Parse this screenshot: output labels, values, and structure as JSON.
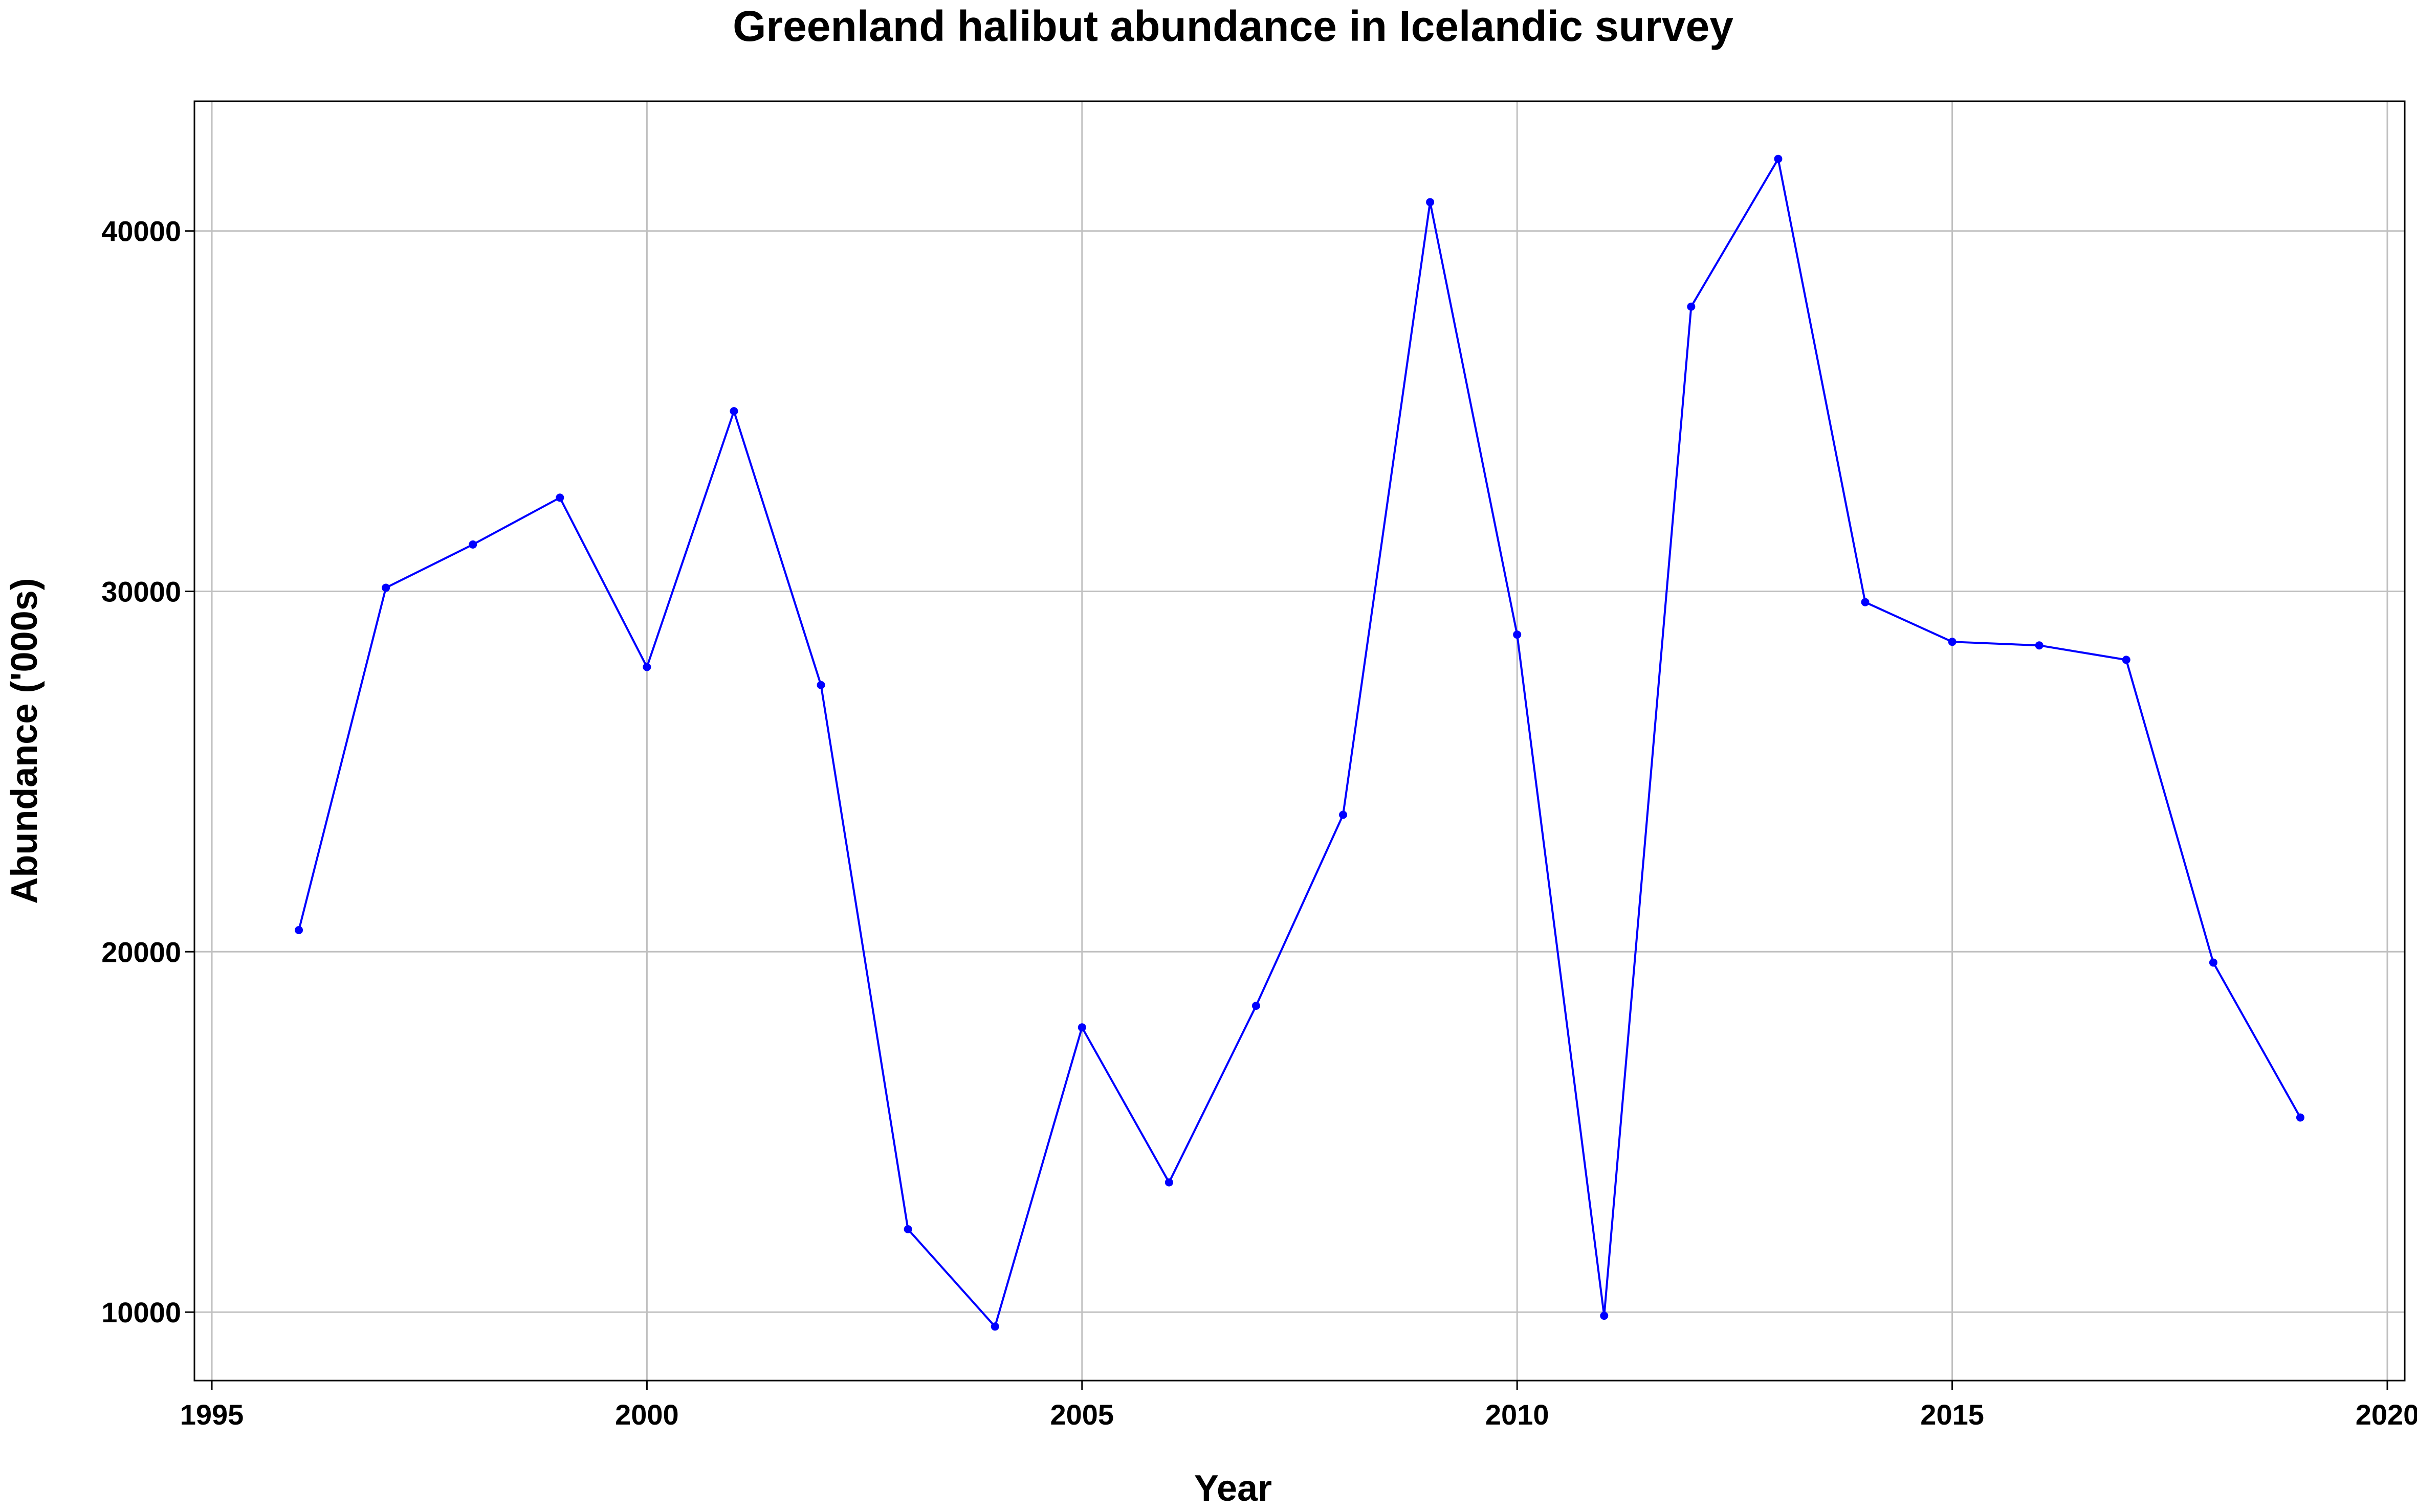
{
  "chart_data": {
    "type": "line",
    "title": "Greenland halibut abundance in Icelandic survey",
    "xlabel": "Year",
    "ylabel": "Abundance ('000s)",
    "xlim": [
      1994.8,
      2020.2
    ],
    "ylim": [
      8100,
      43600
    ],
    "x_ticks": [
      1995,
      2000,
      2005,
      2010,
      2015,
      2020
    ],
    "x_tick_labels": [
      "1995",
      "2000",
      "2005",
      "2010",
      "2015",
      "2020"
    ],
    "y_ticks": [
      10000,
      20000,
      30000,
      40000
    ],
    "y_tick_labels": [
      "10000",
      "20000",
      "30000",
      "40000"
    ],
    "grid": true,
    "legend": "none",
    "colors": {
      "line": "#0000ff",
      "grid": "#c0c0c0",
      "axes": "#000000",
      "background": "#ffffff"
    },
    "series": [
      {
        "x": [
          1996,
          1997,
          1998,
          1999,
          2000,
          2001,
          2002,
          2003,
          2004,
          2005,
          2006,
          2007,
          2008,
          2009,
          2010,
          2011,
          2012,
          2013,
          2014,
          2015,
          2016,
          2017,
          2018,
          2019
        ],
        "values": [
          20600,
          30100,
          31300,
          32600,
          27900,
          35000,
          27400,
          12300,
          9600,
          17900,
          13600,
          18500,
          23800,
          40800,
          28800,
          9900,
          37900,
          42000,
          29700,
          28600,
          28500,
          28100,
          19700,
          15400
        ]
      }
    ]
  }
}
